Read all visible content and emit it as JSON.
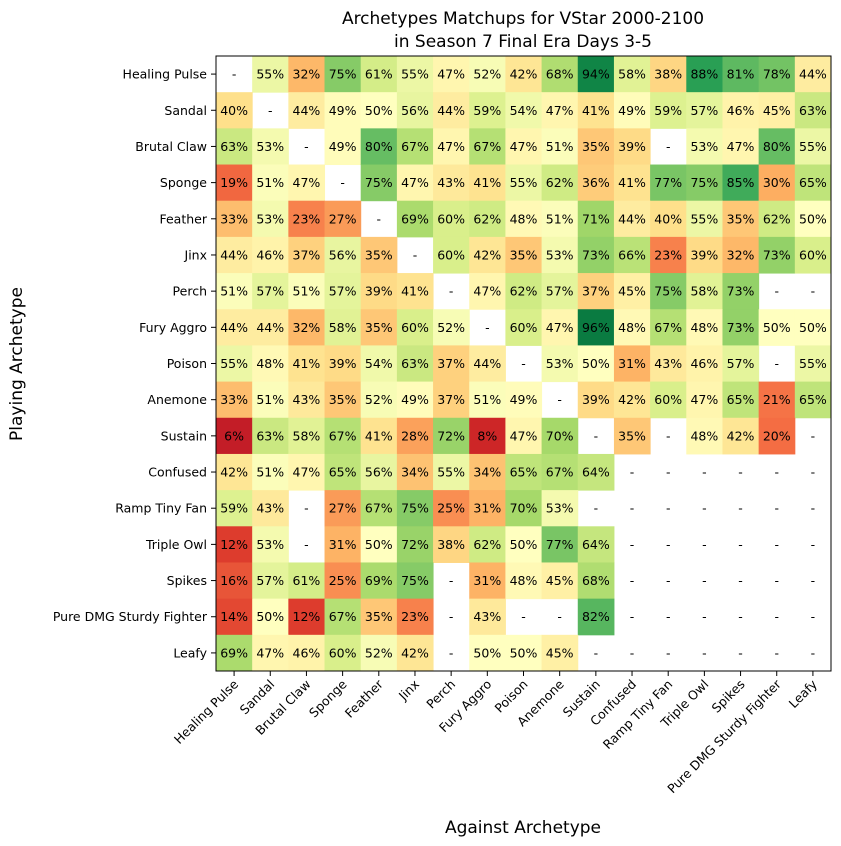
{
  "chart_data": {
    "type": "heatmap",
    "title": "Archetypes Matchups for VStar 2000-2100\nin Season 7 Final Era Days 3-5",
    "xlabel": "Against Archetype",
    "ylabel": "Playing Archetype",
    "colormap": "RdYlGn",
    "vmin": 0,
    "vmax": 100,
    "grid": false,
    "missing_label": "-",
    "rows": [
      "Healing Pulse",
      "Sandal",
      "Brutal Claw",
      "Sponge",
      "Feather",
      "Jinx",
      "Perch",
      "Fury Aggro",
      "Poison",
      "Anemone",
      "Sustain",
      "Confused",
      "Ramp Tiny Fan",
      "Triple Owl",
      "Spikes",
      "Pure DMG Sturdy Fighter",
      "Leafy"
    ],
    "cols": [
      "Healing Pulse",
      "Sandal",
      "Brutal Claw",
      "Sponge",
      "Feather",
      "Jinx",
      "Perch",
      "Fury Aggro",
      "Poison",
      "Anemone",
      "Sustain",
      "Confused",
      "Ramp Tiny Fan",
      "Triple Owl",
      "Spikes",
      "Pure DMG Sturdy Fighter",
      "Leafy"
    ],
    "values": [
      [
        null,
        55,
        32,
        75,
        61,
        55,
        47,
        52,
        42,
        68,
        94,
        58,
        38,
        88,
        81,
        78,
        44
      ],
      [
        40,
        null,
        44,
        49,
        50,
        56,
        44,
        59,
        54,
        47,
        41,
        49,
        59,
        57,
        46,
        45,
        63
      ],
      [
        63,
        53,
        null,
        49,
        80,
        67,
        47,
        67,
        47,
        51,
        35,
        39,
        null,
        53,
        47,
        80,
        55
      ],
      [
        19,
        51,
        47,
        null,
        75,
        47,
        43,
        41,
        55,
        62,
        36,
        41,
        77,
        75,
        85,
        30,
        65
      ],
      [
        33,
        53,
        23,
        27,
        null,
        69,
        60,
        62,
        48,
        51,
        71,
        44,
        40,
        55,
        35,
        62,
        50
      ],
      [
        44,
        46,
        37,
        56,
        35,
        null,
        60,
        42,
        35,
        53,
        73,
        66,
        23,
        39,
        32,
        73,
        60
      ],
      [
        51,
        57,
        51,
        57,
        39,
        41,
        null,
        47,
        62,
        57,
        37,
        45,
        75,
        58,
        73,
        null,
        null
      ],
      [
        44,
        44,
        32,
        58,
        35,
        60,
        52,
        null,
        60,
        47,
        96,
        48,
        67,
        48,
        73,
        50,
        50
      ],
      [
        55,
        48,
        41,
        39,
        54,
        63,
        37,
        44,
        null,
        53,
        50,
        31,
        43,
        46,
        57,
        null,
        55
      ],
      [
        33,
        51,
        43,
        35,
        52,
        49,
        37,
        51,
        49,
        null,
        39,
        42,
        60,
        47,
        65,
        21,
        65
      ],
      [
        6,
        63,
        58,
        67,
        41,
        28,
        72,
        8,
        47,
        70,
        null,
        35,
        null,
        48,
        42,
        20,
        null
      ],
      [
        42,
        51,
        47,
        65,
        56,
        34,
        55,
        34,
        65,
        67,
        64,
        null,
        null,
        null,
        null,
        null,
        null
      ],
      [
        59,
        43,
        null,
        27,
        67,
        75,
        25,
        31,
        70,
        53,
        null,
        null,
        null,
        null,
        null,
        null,
        null
      ],
      [
        12,
        53,
        null,
        31,
        50,
        72,
        38,
        62,
        50,
        77,
        64,
        null,
        null,
        null,
        null,
        null,
        null
      ],
      [
        16,
        57,
        61,
        25,
        69,
        75,
        null,
        31,
        48,
        45,
        68,
        null,
        null,
        null,
        null,
        null,
        null
      ],
      [
        14,
        50,
        12,
        67,
        35,
        23,
        null,
        43,
        null,
        null,
        82,
        null,
        null,
        null,
        null,
        null,
        null
      ],
      [
        69,
        47,
        46,
        60,
        52,
        42,
        null,
        50,
        50,
        45,
        null,
        null,
        null,
        null,
        null,
        null,
        null
      ]
    ],
    "cell_labels": [
      [
        "-",
        "55%",
        "32%",
        "75%",
        "61%",
        "55%",
        "47%",
        "52%",
        "42%",
        "68%",
        "94%",
        "58%",
        "38%",
        "88%",
        "81%",
        "78%",
        "44%"
      ],
      [
        "40%",
        "-",
        "44%",
        "49%",
        "50%",
        "56%",
        "44%",
        "59%",
        "54%",
        "47%",
        "41%",
        "49%",
        "59%",
        "57%",
        "46%",
        "45%",
        "63%"
      ],
      [
        "63%",
        "53%",
        "-",
        "49%",
        "80%",
        "67%",
        "47%",
        "67%",
        "47%",
        "51%",
        "35%",
        "39%",
        "-",
        "53%",
        "47%",
        "80%",
        "55%"
      ],
      [
        "19%",
        "51%",
        "47%",
        "-",
        "75%",
        "47%",
        "43%",
        "41%",
        "55%",
        "62%",
        "36%",
        "41%",
        "77%",
        "75%",
        "85%",
        "30%",
        "65%"
      ],
      [
        "33%",
        "53%",
        "23%",
        "27%",
        "-",
        "69%",
        "60%",
        "62%",
        "48%",
        "51%",
        "71%",
        "44%",
        "40%",
        "55%",
        "35%",
        "62%",
        "50%"
      ],
      [
        "44%",
        "46%",
        "37%",
        "56%",
        "35%",
        "-",
        "60%",
        "42%",
        "35%",
        "53%",
        "73%",
        "66%",
        "23%",
        "39%",
        "32%",
        "73%",
        "60%"
      ],
      [
        "51%",
        "57%",
        "51%",
        "57%",
        "39%",
        "41%",
        "-",
        "47%",
        "62%",
        "57%",
        "37%",
        "45%",
        "75%",
        "58%",
        "73%",
        "-",
        "-"
      ],
      [
        "44%",
        "44%",
        "32%",
        "58%",
        "35%",
        "60%",
        "52%",
        "-",
        "60%",
        "47%",
        "96%",
        "48%",
        "67%",
        "48%",
        "73%",
        "50%",
        "50%"
      ],
      [
        "55%",
        "48%",
        "41%",
        "39%",
        "54%",
        "63%",
        "37%",
        "44%",
        "-",
        "53%",
        "50%",
        "31%",
        "43%",
        "46%",
        "57%",
        "-",
        "55%"
      ],
      [
        "33%",
        "51%",
        "43%",
        "35%",
        "52%",
        "49%",
        "37%",
        "51%",
        "49%",
        "-",
        "39%",
        "42%",
        "60%",
        "47%",
        "65%",
        "21%",
        "65%"
      ],
      [
        "6%",
        "63%",
        "58%",
        "67%",
        "41%",
        "28%",
        "72%",
        "8%",
        "47%",
        "70%",
        "-",
        "35%",
        "-",
        "48%",
        "42%",
        "20%",
        "-"
      ],
      [
        "42%",
        "51%",
        "47%",
        "65%",
        "56%",
        "34%",
        "55%",
        "34%",
        "65%",
        "67%",
        "64%",
        "-",
        "-",
        "-",
        "-",
        "-",
        "-"
      ],
      [
        "59%",
        "43%",
        "-",
        "27%",
        "67%",
        "75%",
        "25%",
        "31%",
        "70%",
        "53%",
        "-",
        "-",
        "-",
        "-",
        "-",
        "-",
        "-"
      ],
      [
        "12%",
        "53%",
        "-",
        "31%",
        "50%",
        "72%",
        "38%",
        "62%",
        "50%",
        "77%",
        "64%",
        "-",
        "-",
        "-",
        "-",
        "-",
        "-"
      ],
      [
        "16%",
        "57%",
        "61%",
        "25%",
        "69%",
        "75%",
        "-",
        "31%",
        "48%",
        "45%",
        "68%",
        "-",
        "-",
        "-",
        "-",
        "-",
        "-"
      ],
      [
        "14%",
        "50%",
        "12%",
        "67%",
        "35%",
        "23%",
        "-",
        "43%",
        "-",
        "-",
        "82%",
        "-",
        "-",
        "-",
        "-",
        "-",
        "-"
      ],
      [
        "69%",
        "47%",
        "46%",
        "60%",
        "52%",
        "42%",
        "-",
        "50%",
        "50%",
        "45%",
        "-",
        "-",
        "-",
        "-",
        "-",
        "-",
        "-"
      ]
    ]
  }
}
